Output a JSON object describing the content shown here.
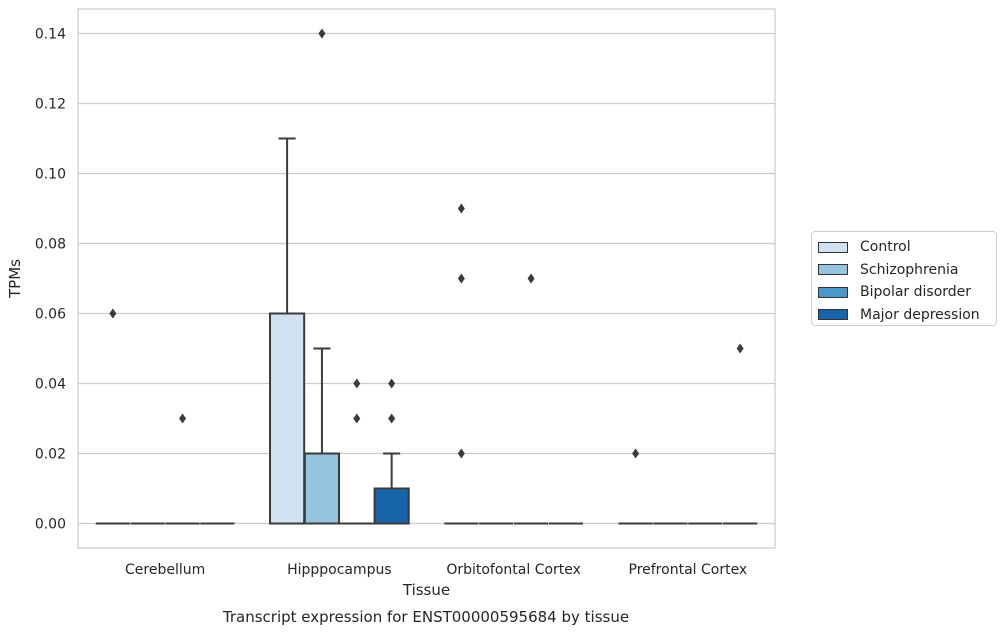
{
  "chart_data": {
    "type": "box",
    "title": "Transcript expression for ENST00000595684 by tissue",
    "xlabel": "Tissue",
    "ylabel": "TPMs",
    "ylim": [
      -0.007,
      0.147
    ],
    "yticks": [
      "0.00",
      "0.02",
      "0.04",
      "0.06",
      "0.08",
      "0.10",
      "0.12",
      "0.14"
    ],
    "ytick_values": [
      0,
      0.02,
      0.04,
      0.06,
      0.08,
      0.1,
      0.12,
      0.14
    ],
    "categories": [
      "Cerebellum",
      "Hipppocampus",
      "Orbitofontal Cortex",
      "Prefrontal Cortex"
    ],
    "grid": "horizontal",
    "legend_position": "right",
    "series": [
      {
        "name": "Control",
        "color": "#d0e1f2",
        "boxes": [
          {
            "q1": 0,
            "median": 0,
            "q3": 0,
            "whisker_low": 0,
            "whisker_high": 0,
            "outliers": [
              0.06
            ]
          },
          {
            "q1": 0,
            "median": 0,
            "q3": 0.06,
            "whisker_low": 0,
            "whisker_high": 0.11,
            "outliers": []
          },
          {
            "q1": 0,
            "median": 0,
            "q3": 0,
            "whisker_low": 0,
            "whisker_high": 0,
            "outliers": [
              0.09,
              0.07,
              0.02
            ]
          },
          {
            "q1": 0,
            "median": 0,
            "q3": 0,
            "whisker_low": 0,
            "whisker_high": 0,
            "outliers": [
              0.02
            ]
          }
        ]
      },
      {
        "name": "Schizophrenia",
        "color": "#94c4df",
        "boxes": [
          {
            "q1": 0,
            "median": 0,
            "q3": 0,
            "whisker_low": 0,
            "whisker_high": 0,
            "outliers": []
          },
          {
            "q1": 0,
            "median": 0,
            "q3": 0.02,
            "whisker_low": 0,
            "whisker_high": 0.05,
            "outliers": [
              0.14
            ]
          },
          {
            "q1": 0,
            "median": 0,
            "q3": 0,
            "whisker_low": 0,
            "whisker_high": 0,
            "outliers": []
          },
          {
            "q1": 0,
            "median": 0,
            "q3": 0,
            "whisker_low": 0,
            "whisker_high": 0,
            "outliers": []
          }
        ]
      },
      {
        "name": "Bipolar disorder",
        "color": "#4a98c9",
        "boxes": [
          {
            "q1": 0,
            "median": 0,
            "q3": 0,
            "whisker_low": 0,
            "whisker_high": 0,
            "outliers": [
              0.03
            ]
          },
          {
            "q1": 0,
            "median": 0,
            "q3": 0,
            "whisker_low": 0,
            "whisker_high": 0,
            "outliers": [
              0.04,
              0.03
            ]
          },
          {
            "q1": 0,
            "median": 0,
            "q3": 0,
            "whisker_low": 0,
            "whisker_high": 0,
            "outliers": [
              0.07
            ]
          },
          {
            "q1": 0,
            "median": 0,
            "q3": 0,
            "whisker_low": 0,
            "whisker_high": 0,
            "outliers": []
          }
        ]
      },
      {
        "name": "Major depression",
        "color": "#1764ab",
        "boxes": [
          {
            "q1": 0,
            "median": 0,
            "q3": 0,
            "whisker_low": 0,
            "whisker_high": 0,
            "outliers": []
          },
          {
            "q1": 0,
            "median": 0,
            "q3": 0.01,
            "whisker_low": 0,
            "whisker_high": 0.02,
            "outliers": [
              0.04,
              0.03
            ]
          },
          {
            "q1": 0,
            "median": 0,
            "q3": 0,
            "whisker_low": 0,
            "whisker_high": 0,
            "outliers": []
          },
          {
            "q1": 0,
            "median": 0,
            "q3": 0,
            "whisker_low": 0,
            "whisker_high": 0,
            "outliers": [
              0.05
            ]
          }
        ]
      }
    ]
  }
}
